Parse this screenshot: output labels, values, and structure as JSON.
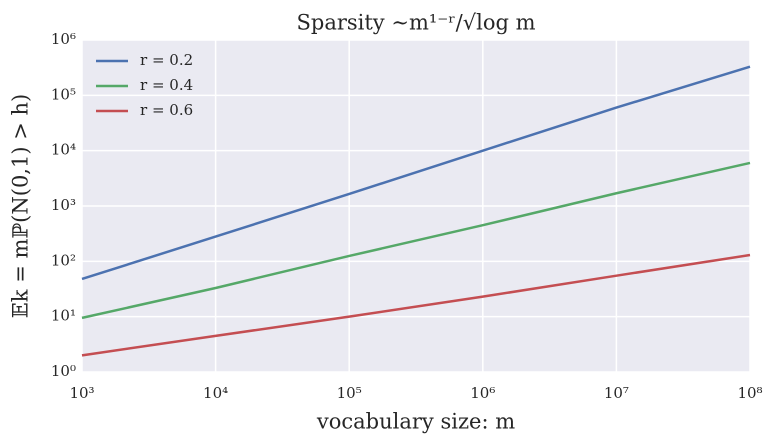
{
  "chart_data": {
    "type": "line",
    "title": "Sparsity  ∼m¹⁻ʳ/√log m",
    "x_label": "vocabulary size: m",
    "y_label": "𝔼k = mℙ(N(0,1) > h)",
    "x": [
      1000,
      10000,
      100000,
      1000000,
      10000000,
      100000000
    ],
    "series": [
      {
        "name": "r = 0.2",
        "color": "#4c72b0",
        "values": [
          48,
          280,
          1650,
          10000,
          60000,
          330000
        ]
      },
      {
        "name": "r = 0.4",
        "color": "#55a868",
        "values": [
          9.5,
          33,
          125,
          450,
          1700,
          6000
        ]
      },
      {
        "name": "r = 0.6",
        "color": "#c44e52",
        "values": [
          2,
          4.5,
          10,
          23,
          55,
          130
        ]
      }
    ],
    "x_log": true,
    "y_log": true,
    "xlim": [
      1000,
      100000000
    ],
    "ylim": [
      1,
      1000000
    ],
    "xticks": [
      {
        "value": 1000,
        "label": "10³"
      },
      {
        "value": 10000,
        "label": "10⁴"
      },
      {
        "value": 100000,
        "label": "10⁵"
      },
      {
        "value": 1000000,
        "label": "10⁶"
      },
      {
        "value": 10000000,
        "label": "10⁷"
      },
      {
        "value": 100000000,
        "label": "10⁸"
      }
    ],
    "yticks": [
      {
        "value": 1,
        "label": "10⁰"
      },
      {
        "value": 10,
        "label": "10¹"
      },
      {
        "value": 100,
        "label": "10²"
      },
      {
        "value": 1000,
        "label": "10³"
      },
      {
        "value": 10000,
        "label": "10⁴"
      },
      {
        "value": 100000,
        "label": "10⁵"
      },
      {
        "value": 1000000,
        "label": "10⁶"
      }
    ],
    "grid": true,
    "legend": "upper-left",
    "background": "#eaeaf2"
  }
}
